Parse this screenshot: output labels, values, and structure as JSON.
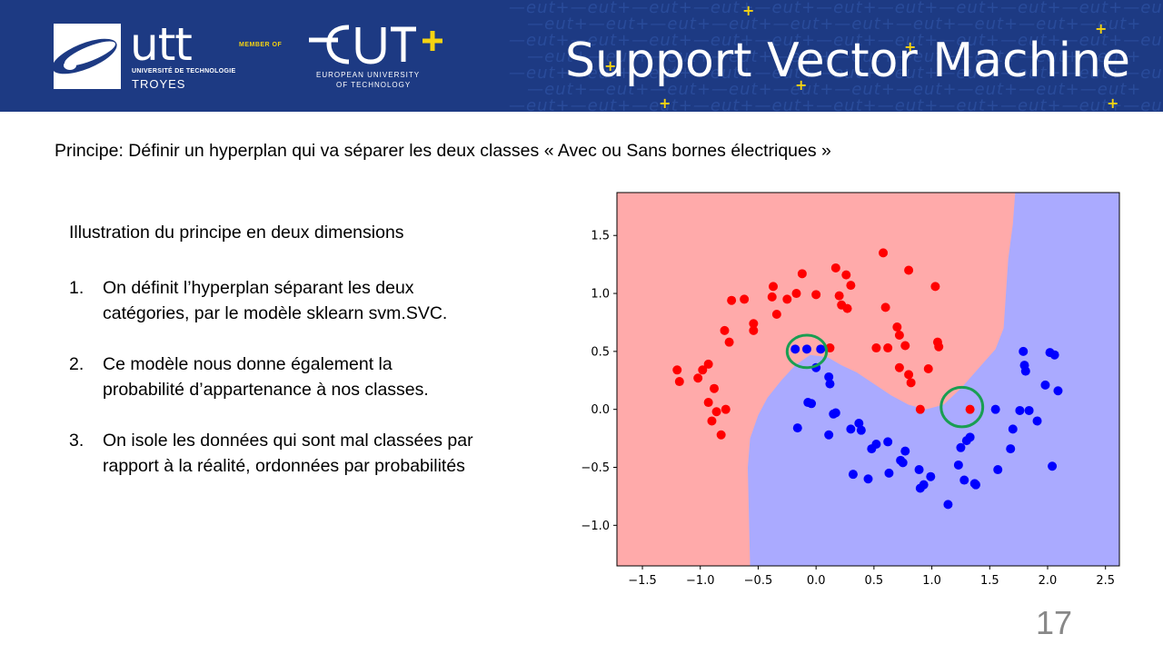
{
  "header": {
    "logo_utt": "utt",
    "logo_utt_sub": "UNIVERSITÉ DE TECHNOLOGIE",
    "logo_utt_city": "TROYES",
    "member_of": "MEMBER OF",
    "logo_eut": "eut+",
    "logo_eut_sub1": "EUROPEAN UNIVERSITY",
    "logo_eut_sub2": "OF TECHNOLOGY",
    "title": "Support Vector Machine",
    "colors": {
      "band": "#1d3a83",
      "accent": "#f5d312"
    }
  },
  "body": {
    "principle": "Principe: Définir un hyperplan qui va séparer les deux classes « Avec ou Sans bornes électriques »",
    "intro": "Illustration du principe en deux dimensions",
    "steps": [
      {
        "num": "1.",
        "line1": "On définit l’hyperplan séparant les deux",
        "line2": "catégories, par le modèle sklearn svm.SVC."
      },
      {
        "num": "2.",
        "line1": "Ce modèle nous donne également la",
        "line2": "probabilité d’appartenance à nos classes."
      },
      {
        "num": "3.",
        "line1": "On isole les données qui sont mal classées par",
        "line2": "rapport à la réalité, ordonnées par probabilités"
      }
    ]
  },
  "page_number": "17",
  "chart_data": {
    "type": "scatter",
    "title": "",
    "xlabel": "",
    "ylabel": "",
    "xlim": [
      -1.72,
      2.62
    ],
    "ylim": [
      -1.35,
      1.87
    ],
    "xticks": [
      -1.5,
      -1.0,
      -0.5,
      0.0,
      0.5,
      1.0,
      1.5,
      2.0,
      2.5
    ],
    "yticks": [
      -1.0,
      -0.5,
      0.0,
      0.5,
      1.0,
      1.5
    ],
    "grid": false,
    "colors": {
      "region_red": "#ffaaaa",
      "region_blue": "#aaaaff",
      "red": "#ff0000",
      "blue": "#0000ff",
      "highlight": "#199e52"
    },
    "decision_boundary": [
      [
        -0.57,
        -1.35
      ],
      [
        -0.59,
        -0.5
      ],
      [
        -0.57,
        -0.25
      ],
      [
        -0.5,
        -0.05
      ],
      [
        -0.42,
        0.1
      ],
      [
        -0.3,
        0.25
      ],
      [
        -0.18,
        0.38
      ],
      [
        -0.05,
        0.47
      ],
      [
        0.1,
        0.45
      ],
      [
        0.22,
        0.38
      ],
      [
        0.35,
        0.32
      ],
      [
        0.5,
        0.22
      ],
      [
        0.65,
        0.12
      ],
      [
        0.8,
        0.04
      ],
      [
        0.95,
        0.0
      ],
      [
        1.1,
        0.04
      ],
      [
        1.25,
        0.18
      ],
      [
        1.4,
        0.35
      ],
      [
        1.55,
        0.52
      ],
      [
        1.62,
        0.7
      ],
      [
        1.64,
        1.0
      ],
      [
        1.66,
        1.3
      ],
      [
        1.7,
        1.6
      ],
      [
        1.72,
        1.87
      ]
    ],
    "series": [
      {
        "values": [
          [
            -1.2,
            0.34
          ],
          [
            -1.18,
            0.24
          ],
          [
            -1.02,
            0.27
          ],
          [
            -0.98,
            0.34
          ],
          [
            -0.93,
            0.39
          ],
          [
            -0.93,
            0.06
          ],
          [
            -0.9,
            -0.1
          ],
          [
            -0.88,
            0.18
          ],
          [
            -0.86,
            -0.02
          ],
          [
            -0.82,
            -0.22
          ],
          [
            -0.78,
            0.0
          ],
          [
            -0.79,
            0.68
          ],
          [
            -0.75,
            0.58
          ],
          [
            -0.73,
            0.94
          ],
          [
            -0.62,
            0.95
          ],
          [
            -0.54,
            0.74
          ],
          [
            -0.54,
            0.68
          ],
          [
            -0.38,
            0.97
          ],
          [
            -0.37,
            1.06
          ],
          [
            -0.34,
            0.82
          ],
          [
            -0.25,
            0.95
          ],
          [
            -0.17,
            1.0
          ],
          [
            -0.12,
            1.17
          ],
          [
            0.0,
            0.99
          ],
          [
            0.17,
            1.22
          ],
          [
            0.2,
            0.98
          ],
          [
            0.22,
            0.9
          ],
          [
            0.26,
            1.16
          ],
          [
            0.27,
            0.87
          ],
          [
            0.3,
            1.07
          ],
          [
            0.12,
            0.53
          ],
          [
            0.52,
            0.53
          ],
          [
            0.58,
            1.35
          ],
          [
            0.6,
            0.88
          ],
          [
            0.62,
            0.53
          ],
          [
            0.7,
            0.71
          ],
          [
            0.72,
            0.64
          ],
          [
            0.72,
            0.36
          ],
          [
            0.77,
            0.55
          ],
          [
            0.8,
            1.2
          ],
          [
            0.8,
            0.3
          ],
          [
            0.82,
            0.23
          ],
          [
            0.9,
            0.0
          ],
          [
            0.97,
            0.35
          ],
          [
            1.03,
            1.06
          ],
          [
            1.05,
            0.58
          ],
          [
            1.06,
            0.54
          ],
          [
            1.33,
            0.0
          ]
        ]
      },
      {
        "values": [
          [
            -0.16,
            -0.16
          ],
          [
            -0.18,
            0.52
          ],
          [
            -0.08,
            0.52
          ],
          [
            0.04,
            0.52
          ],
          [
            -0.07,
            0.06
          ],
          [
            -0.04,
            0.05
          ],
          [
            0.0,
            0.36
          ],
          [
            0.11,
            0.28
          ],
          [
            0.12,
            0.22
          ],
          [
            0.15,
            -0.04
          ],
          [
            0.17,
            -0.03
          ],
          [
            0.11,
            -0.22
          ],
          [
            0.3,
            -0.17
          ],
          [
            0.32,
            -0.56
          ],
          [
            0.37,
            -0.12
          ],
          [
            0.39,
            -0.18
          ],
          [
            0.45,
            -0.6
          ],
          [
            0.48,
            -0.34
          ],
          [
            0.52,
            -0.3
          ],
          [
            0.62,
            -0.28
          ],
          [
            0.63,
            -0.55
          ],
          [
            0.73,
            -0.44
          ],
          [
            0.75,
            -0.46
          ],
          [
            0.77,
            -0.36
          ],
          [
            0.89,
            -0.52
          ],
          [
            0.9,
            -0.68
          ],
          [
            0.93,
            -0.65
          ],
          [
            0.99,
            -0.58
          ],
          [
            1.14,
            -0.82
          ],
          [
            1.23,
            -0.48
          ],
          [
            1.25,
            -0.33
          ],
          [
            1.3,
            -0.27
          ],
          [
            1.33,
            -0.24
          ],
          [
            1.28,
            -0.61
          ],
          [
            1.37,
            -0.64
          ],
          [
            1.38,
            -0.65
          ],
          [
            1.55,
            0.0
          ],
          [
            1.57,
            -0.52
          ],
          [
            1.68,
            -0.34
          ],
          [
            1.7,
            -0.17
          ],
          [
            1.76,
            -0.01
          ],
          [
            1.79,
            0.5
          ],
          [
            1.8,
            0.38
          ],
          [
            1.81,
            0.33
          ],
          [
            1.84,
            -0.01
          ],
          [
            1.91,
            -0.1
          ],
          [
            1.98,
            0.21
          ],
          [
            2.02,
            0.49
          ],
          [
            2.04,
            -0.49
          ],
          [
            2.06,
            0.47
          ],
          [
            2.09,
            0.16
          ]
        ]
      }
    ],
    "highlights": [
      {
        "center": [
          -0.08,
          0.5
        ],
        "rx": 0.17,
        "ry": 0.14
      },
      {
        "center": [
          1.26,
          0.02
        ],
        "rx": 0.18,
        "ry": 0.17
      }
    ]
  }
}
